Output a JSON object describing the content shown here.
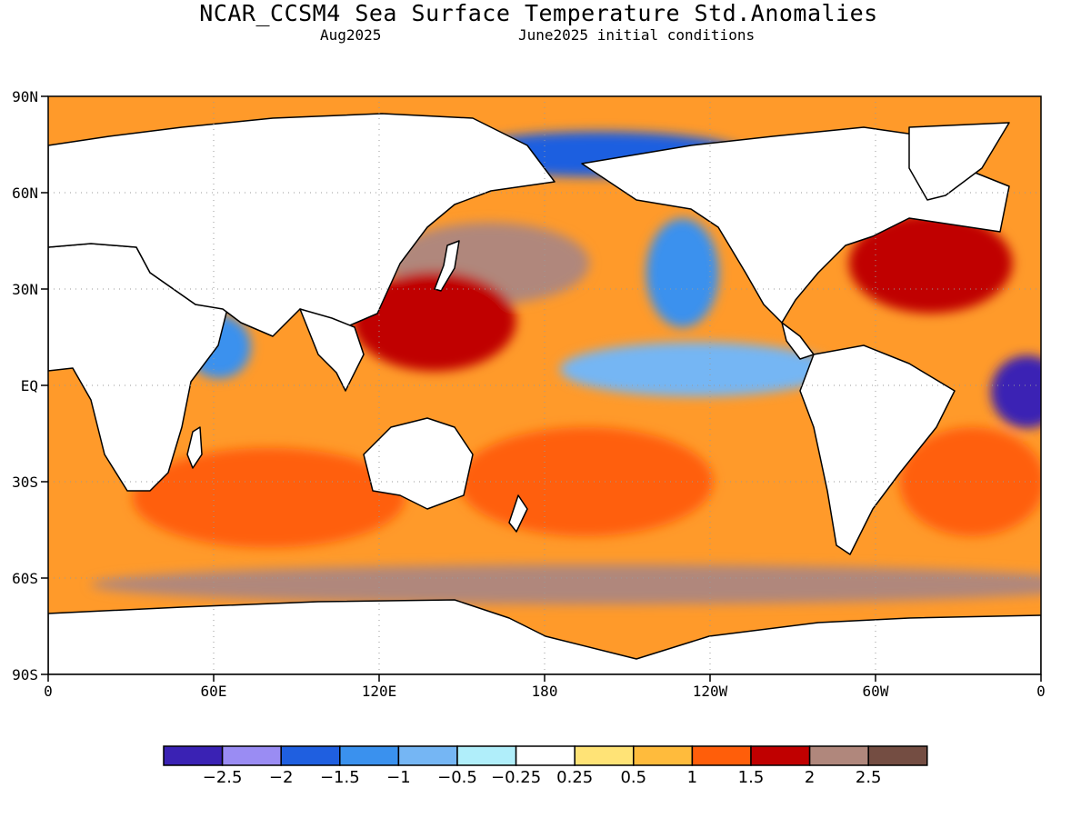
{
  "title": "NCAR_CCSM4 Sea Surface Temperature Std.Anomalies",
  "subtitle_left": "Aug2025",
  "subtitle_right": "June2025 initial conditions",
  "map": {
    "lon_labels": [
      "0",
      "60E",
      "120E",
      "180",
      "120W",
      "60W",
      "0"
    ],
    "lat_labels": [
      "90N",
      "60N",
      "30N",
      "EQ",
      "30S",
      "60S",
      "90S"
    ],
    "land_color": "#ffffff",
    "gridlines": true
  },
  "colorbar": {
    "colors": [
      "#3a22b4",
      "#9a8cf3",
      "#1f5fe0",
      "#3a91ee",
      "#75b6f4",
      "#b0eefa",
      "#ffffff",
      "#ffe376",
      "#ffbb3c",
      "#ff5e0a",
      "#c00000",
      "#b0877c",
      "#744d42"
    ],
    "labels": [
      "-2.5",
      "-2",
      "-1.5",
      "-1",
      "-0.5",
      "-0.25",
      "0.25",
      "0.5",
      "1",
      "1.5",
      "2",
      "2.5"
    ]
  },
  "regions": [
    {
      "name": "subtropical-north-pacific-warm",
      "lon": 160,
      "lat": 38,
      "value": 2.5
    },
    {
      "name": "western-pacific-warm-pool",
      "lon": 140,
      "lat": 20,
      "value": 2.0
    },
    {
      "name": "tropical-south-pacific-warm",
      "lon": 195,
      "lat": -30,
      "value": 1.5
    },
    {
      "name": "eastern-equatorial-pacific-cool",
      "lon": 235,
      "lat": 5,
      "value": -0.5
    },
    {
      "name": "california-current-cool",
      "lon": 230,
      "lat": 35,
      "value": -1.0
    },
    {
      "name": "north-atlantic-warm",
      "lon": 320,
      "lat": 38,
      "value": 2.0
    },
    {
      "name": "tropical-east-atlantic-cool",
      "lon": 355,
      "lat": -2,
      "value": -2.5
    },
    {
      "name": "south-atlantic-warm",
      "lon": 335,
      "lat": -30,
      "value": 1.5
    },
    {
      "name": "southern-indian-ocean-warm",
      "lon": 80,
      "lat": -35,
      "value": 1.5
    },
    {
      "name": "southern-ocean-band-warm",
      "lon": 200,
      "lat": -62,
      "value": 2.5
    },
    {
      "name": "arabian-sea-cool",
      "lon": 62,
      "lat": 12,
      "value": -1.0
    },
    {
      "name": "bering-arctic-cool",
      "lon": 200,
      "lat": 72,
      "value": -1.5
    }
  ]
}
